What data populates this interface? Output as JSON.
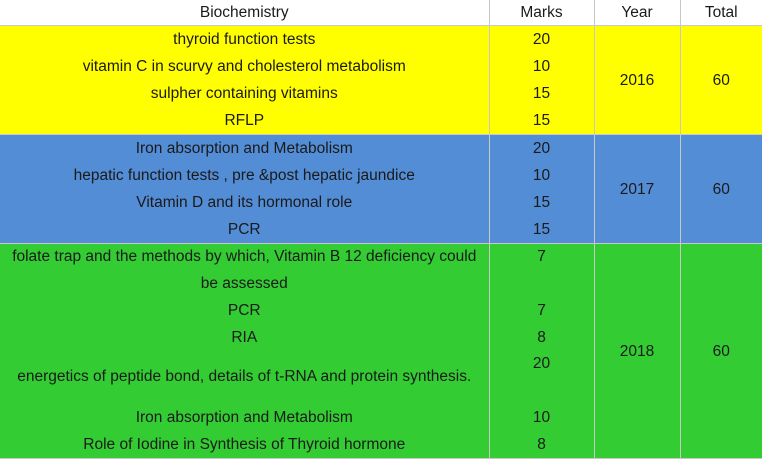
{
  "header": {
    "topic": "Biochemistry",
    "marks": "Marks",
    "year": "Year",
    "total": "Total"
  },
  "groups": [
    {
      "year": "2016",
      "total": "60",
      "color": "#ffff00",
      "rows": [
        {
          "topic": "thyroid function tests",
          "marks": "20"
        },
        {
          "topic": "vitamin C in scurvy and cholesterol metabolism",
          "marks": "10"
        },
        {
          "topic": "sulpher containing vitamins",
          "marks": "15"
        },
        {
          "topic": "RFLP",
          "marks": "15"
        }
      ]
    },
    {
      "year": "2017",
      "total": "60",
      "color": "#538dd5",
      "rows": [
        {
          "topic": "Iron absorption and Metabolism",
          "marks": "20"
        },
        {
          "topic": "hepatic function tests , pre &post  hepatic jaundice",
          "marks": "10"
        },
        {
          "topic": "Vitamin D and its hormonal role",
          "marks": "15"
        },
        {
          "topic": "PCR",
          "marks": "15"
        }
      ]
    },
    {
      "year": "2018",
      "total": "60",
      "color": "#33cc33",
      "rows": [
        {
          "topic": "folate trap and the methods by which, Vitamin B 12 deficiency could be assessed",
          "marks": "7"
        },
        {
          "topic": "PCR",
          "marks": "7"
        },
        {
          "topic": "RIA",
          "marks": "8"
        },
        {
          "topic": "energetics of peptide bond, details of t-RNA and protein synthesis.",
          "marks": "20"
        },
        {
          "topic": "Iron absorption and Metabolism",
          "marks": "10"
        },
        {
          "topic": "Role of Iodine in Synthesis of Thyroid hormone",
          "marks": "8"
        }
      ]
    }
  ]
}
